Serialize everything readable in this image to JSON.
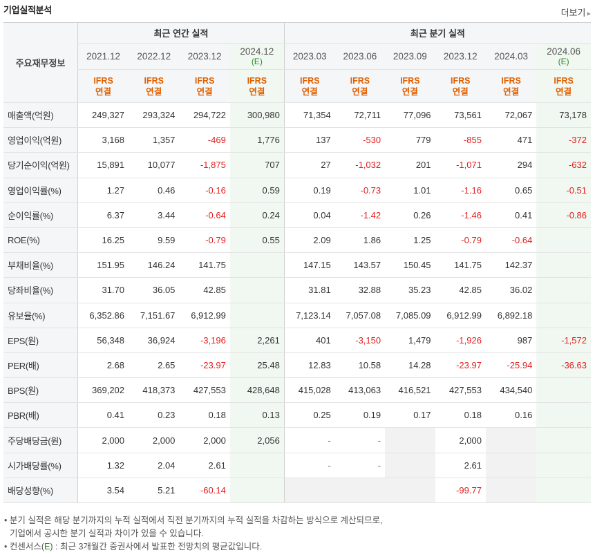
{
  "header": {
    "title": "기업실적분석",
    "more_label": "더보기",
    "more_arrow": "▸"
  },
  "table": {
    "corner_label": "주요재무정보",
    "group_annual": "최근 연간 실적",
    "group_quarter": "최근 분기 실적",
    "periods": [
      {
        "label": "2021.12",
        "est": ""
      },
      {
        "label": "2022.12",
        "est": ""
      },
      {
        "label": "2023.12",
        "est": ""
      },
      {
        "label": "2024.12",
        "est": "(E)"
      },
      {
        "label": "2023.03",
        "est": ""
      },
      {
        "label": "2023.06",
        "est": ""
      },
      {
        "label": "2023.09",
        "est": ""
      },
      {
        "label": "2023.12",
        "est": ""
      },
      {
        "label": "2024.03",
        "est": ""
      },
      {
        "label": "2024.06",
        "est": "(E)"
      }
    ],
    "ifrs_top": "IFRS",
    "ifrs_bottom": "연결",
    "rows": [
      {
        "label": "매출액(억원)",
        "values": [
          "249,327",
          "293,324",
          "294,722",
          "300,980",
          "71,354",
          "72,711",
          "77,096",
          "73,561",
          "72,067",
          "73,178"
        ]
      },
      {
        "label": "영업이익(억원)",
        "values": [
          "3,168",
          "1,357",
          "-469",
          "1,776",
          "137",
          "-530",
          "779",
          "-855",
          "471",
          "-372"
        ]
      },
      {
        "label": "당기순이익(억원)",
        "values": [
          "15,891",
          "10,077",
          "-1,875",
          "707",
          "27",
          "-1,032",
          "201",
          "-1,071",
          "294",
          "-632"
        ]
      },
      {
        "label": "영업이익률(%)",
        "values": [
          "1.27",
          "0.46",
          "-0.16",
          "0.59",
          "0.19",
          "-0.73",
          "1.01",
          "-1.16",
          "0.65",
          "-0.51"
        ]
      },
      {
        "label": "순이익률(%)",
        "values": [
          "6.37",
          "3.44",
          "-0.64",
          "0.24",
          "0.04",
          "-1.42",
          "0.26",
          "-1.46",
          "0.41",
          "-0.86"
        ]
      },
      {
        "label": "ROE(%)",
        "values": [
          "16.25",
          "9.59",
          "-0.79",
          "0.55",
          "2.09",
          "1.86",
          "1.25",
          "-0.79",
          "-0.64",
          ""
        ]
      },
      {
        "label": "부채비율(%)",
        "values": [
          "151.95",
          "146.24",
          "141.75",
          "",
          "147.15",
          "143.57",
          "150.45",
          "141.75",
          "142.37",
          ""
        ]
      },
      {
        "label": "당좌비율(%)",
        "values": [
          "31.70",
          "36.05",
          "42.85",
          "",
          "31.81",
          "32.88",
          "35.23",
          "42.85",
          "36.02",
          ""
        ]
      },
      {
        "label": "유보율(%)",
        "values": [
          "6,352.86",
          "7,151.67",
          "6,912.99",
          "",
          "7,123.14",
          "7,057.08",
          "7,085.09",
          "6,912.99",
          "6,892.18",
          ""
        ]
      },
      {
        "label": "EPS(원)",
        "values": [
          "56,348",
          "36,924",
          "-3,196",
          "2,261",
          "401",
          "-3,150",
          "1,479",
          "-1,926",
          "987",
          "-1,572"
        ]
      },
      {
        "label": "PER(배)",
        "values": [
          "2.68",
          "2.65",
          "-23.97",
          "25.48",
          "12.83",
          "10.58",
          "14.28",
          "-23.97",
          "-25.94",
          "-36.63"
        ]
      },
      {
        "label": "BPS(원)",
        "values": [
          "369,202",
          "418,373",
          "427,553",
          "428,648",
          "415,028",
          "413,063",
          "416,521",
          "427,553",
          "434,540",
          ""
        ]
      },
      {
        "label": "PBR(배)",
        "values": [
          "0.41",
          "0.23",
          "0.18",
          "0.13",
          "0.25",
          "0.19",
          "0.17",
          "0.18",
          "0.16",
          ""
        ]
      },
      {
        "label": "주당배당금(원)",
        "values": [
          "2,000",
          "2,000",
          "2,000",
          "2,056",
          "-",
          "-",
          "",
          "2,000",
          "",
          ""
        ]
      },
      {
        "label": "시가배당률(%)",
        "values": [
          "1.32",
          "2.04",
          "2.61",
          "",
          "-",
          "-",
          "",
          "2.61",
          "",
          ""
        ]
      },
      {
        "label": "배당성향(%)",
        "values": [
          "3.54",
          "5.21",
          "-60.14",
          "",
          "",
          "",
          "",
          "-99.77",
          "",
          ""
        ]
      }
    ],
    "gray_cells": [
      [
        13,
        6
      ],
      [
        13,
        8
      ],
      [
        14,
        6
      ],
      [
        14,
        8
      ],
      [
        15,
        4
      ],
      [
        15,
        5
      ],
      [
        15,
        6
      ],
      [
        15,
        8
      ]
    ]
  },
  "notes": {
    "line1": "분기 실적은 해당 분기까지의 누적 실적에서 직전 분기까지의 누적 실적을 차감하는 방식으로 계산되므로,",
    "line2": "기업에서 공시한 분기 실적과 차이가 있을 수 있습니다.",
    "line3_pre": "컨센서스(",
    "line3_e": "E",
    "line3_post": ") : 최근 3개월간 증권사에서 발표한 전망치의 평균값입니다.",
    "bullet": "•"
  }
}
